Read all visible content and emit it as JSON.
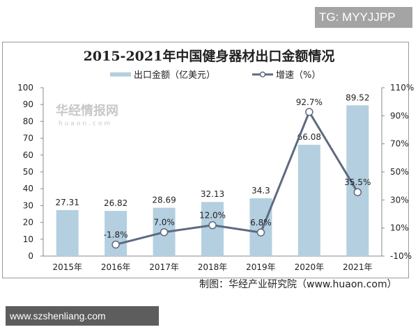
{
  "watermark_tag": "TG: MYYJJPP",
  "footer_url": "www.szshenliang.com",
  "credit": "制图：华经产业研究院（www.huaon.com）",
  "logo_text": "华经情报网",
  "logo_sub": "huaon.com",
  "colors": {
    "bar": "#b4cfe0",
    "line": "#5d6a80",
    "marker_fill": "#ffffff"
  },
  "chart_data": {
    "type": "bar+line",
    "title": "2015-2021年中国健身器材出口金额情况",
    "categories": [
      "2015年",
      "2016年",
      "2017年",
      "2018年",
      "2019年",
      "2020年",
      "2021年"
    ],
    "series": [
      {
        "name": "出口金额（亿美元）",
        "type": "bar",
        "axis": "left",
        "values": [
          27.31,
          26.82,
          28.69,
          32.13,
          34.3,
          66.08,
          89.52
        ],
        "labels": [
          "27.31",
          "26.82",
          "28.69",
          "32.13",
          "34.3",
          "66.08",
          "89.52"
        ]
      },
      {
        "name": "增速（%）",
        "type": "line",
        "axis": "right",
        "values": [
          null,
          -1.8,
          7.0,
          12.0,
          6.8,
          92.7,
          35.5
        ],
        "labels": [
          "",
          "-1.8%",
          "7.0%",
          "12.0%",
          "6.8%",
          "92.7%",
          "35.5%"
        ]
      }
    ],
    "left_axis": {
      "ylim": [
        0,
        100
      ],
      "ticks": [
        "0",
        "10",
        "20",
        "30",
        "40",
        "50",
        "60",
        "70",
        "80",
        "90",
        "100"
      ]
    },
    "right_axis": {
      "ylim": [
        -10,
        110
      ],
      "ticks": [
        "-10%",
        "10%",
        "30%",
        "50%",
        "70%",
        "90%",
        "110%"
      ]
    },
    "legend": "top-center",
    "grid": false
  }
}
